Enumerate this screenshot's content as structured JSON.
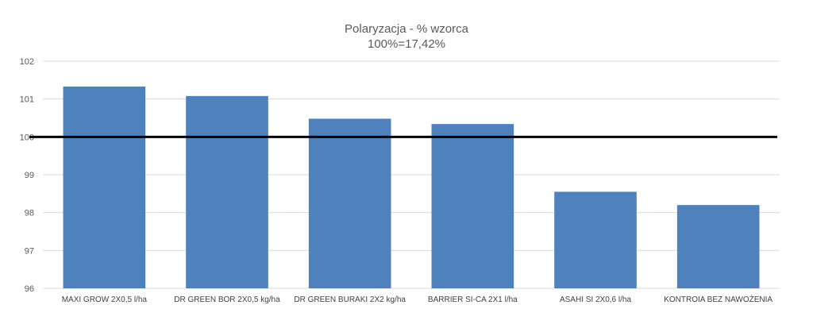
{
  "chart_data": {
    "type": "bar",
    "title": "Polaryzacja - % wzorca",
    "subtitle": "100%=17,42%",
    "categories": [
      "MAXI GROW 2X0,5 l/ha",
      "DR GREEN BOR 2X0,5 kg/ha",
      "DR GREEN BURAKI 2X2 kg/ha",
      "BARRIER SI-CA 2X1 l/ha",
      "ASAHI SI 2X0,6 l/ha",
      "KONTROIA BEZ NAWOŻENIA"
    ],
    "values": [
      101.33,
      101.08,
      100.48,
      100.34,
      98.55,
      98.2
    ],
    "ylim": [
      96,
      102
    ],
    "yticks": [
      "96",
      "97",
      "98",
      "99",
      "100",
      "101",
      "102"
    ],
    "reference_line": 100,
    "grid": true,
    "colors": {
      "bar": "#4f81bd",
      "reference": "#000000",
      "grid": "#d9d9d9",
      "text": "#595959"
    }
  }
}
